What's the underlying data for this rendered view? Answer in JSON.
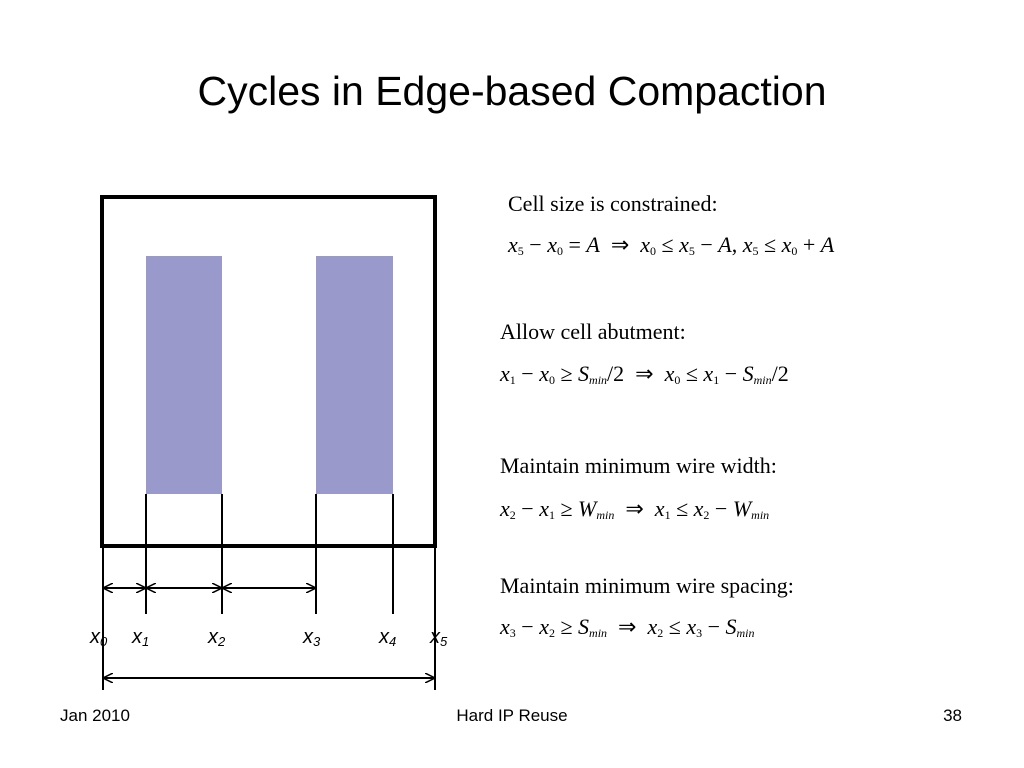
{
  "title": "Cycles in Edge-based Compaction",
  "labels": {
    "x0": "x",
    "x0_sub": "0",
    "x1": "x",
    "x1_sub": "1",
    "x2": "x",
    "x2_sub": "2",
    "x3": "x",
    "x3_sub": "3",
    "x4": "x",
    "x4_sub": "4",
    "x5": "x",
    "x5_sub": "5"
  },
  "constraints": [
    {
      "heading": "Cell size is constrained:",
      "equation": "x5 − x0 = A ⇒ x0 ≤ x5 − A, x5 ≤ x0 + A"
    },
    {
      "heading": "Allow cell abutment:",
      "equation": "x1 − x0 ≥ Smin/2 ⇒ x0 ≤ x1 − Smin/2"
    },
    {
      "heading": "Maintain minimum wire width:",
      "equation": "x2 − x1 ≥ Wmin ⇒ x1 ≤ x2 − Wmin"
    },
    {
      "heading": "Maintain minimum wire spacing:",
      "equation": "x3 − x2 ≥ Smin ⇒ x2 ≤ x3 − Smin"
    }
  ],
  "footer": {
    "left": "Jan 2010",
    "center": "Hard IP Reuse",
    "right": "38"
  },
  "colors": {
    "wire_fill": "#9999cc",
    "cell_border": "#000000"
  }
}
